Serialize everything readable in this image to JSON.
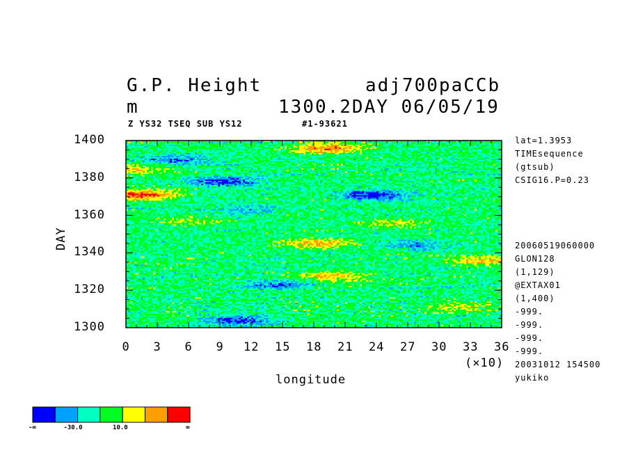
{
  "header": {
    "title_left": "G.P. Height",
    "title_right": "adj700paCCb",
    "units": "m",
    "date_line": "1300.2DAY 06/05/19",
    "sub_left": "Z YS32 TSEQ SUB YS12",
    "sub_right": "#1-93621"
  },
  "right_info": {
    "top": [
      "lat=1.3953",
      "TIMEsequence",
      "(gtsub)",
      "CSIG16.P=0.23"
    ],
    "bottom": [
      "20060519060000",
      "GLON128",
      "(1,129)",
      "@EXTAX01",
      "(1,400)",
      "-999.",
      "-999.",
      "-999.",
      "-999.",
      "20031012 154500",
      "yukiko"
    ]
  },
  "colorbar": {
    "colors": [
      "#0000ff",
      "#00a0ff",
      "#00ffc0",
      "#00ff20",
      "#ffff00",
      "#ffa000",
      "#ff0000"
    ],
    "labels": [
      "-∞",
      "-30.0",
      "10.0",
      "∞"
    ]
  },
  "chart_data": {
    "type": "heatmap",
    "title": "G.P. Height",
    "xlabel": "longitude",
    "ylabel": "DAY",
    "x_multiplier": "(×10)",
    "xlim": [
      0,
      36
    ],
    "ylim": [
      1300,
      1400
    ],
    "xticks": [
      "0",
      "3",
      "6",
      "9",
      "12",
      "15",
      "18",
      "21",
      "24",
      "27",
      "30",
      "33",
      "36"
    ],
    "yticks": [
      "1300",
      "1320",
      "1340",
      "1360",
      "1380",
      "1400"
    ],
    "levels": [
      "-∞",
      "-30.0",
      "10.0",
      "∞"
    ],
    "anomalies": [
      {
        "lon": 1.5,
        "day": 1371,
        "value": 45
      },
      {
        "lon": 0.5,
        "day": 1384,
        "value": 22
      },
      {
        "lon": 19.5,
        "day": 1396,
        "value": 40
      },
      {
        "lon": 18.5,
        "day": 1345,
        "value": 32
      },
      {
        "lon": 20,
        "day": 1327,
        "value": 28
      },
      {
        "lon": 34,
        "day": 1336,
        "value": 28
      },
      {
        "lon": 31.5,
        "day": 1311,
        "value": 20
      },
      {
        "lon": 25.5,
        "day": 1356,
        "value": 18
      },
      {
        "lon": 6,
        "day": 1357,
        "value": 16
      },
      {
        "lon": 9.5,
        "day": 1378,
        "value": -34
      },
      {
        "lon": 23.5,
        "day": 1371,
        "value": -36
      },
      {
        "lon": 10.5,
        "day": 1304,
        "value": -28
      },
      {
        "lon": 14.5,
        "day": 1323,
        "value": -22
      },
      {
        "lon": 5,
        "day": 1390,
        "value": -22
      },
      {
        "lon": 28,
        "day": 1344,
        "value": -18
      },
      {
        "lon": 12,
        "day": 1363,
        "value": -16
      }
    ]
  }
}
